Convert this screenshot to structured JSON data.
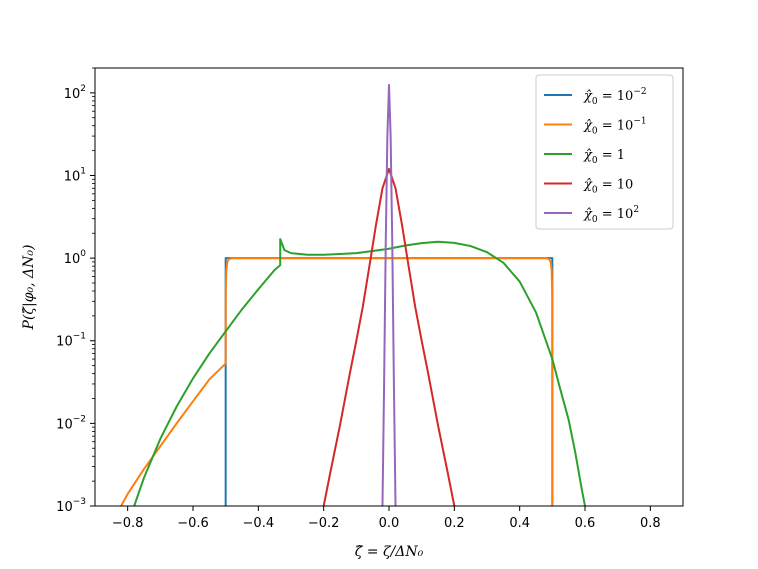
{
  "chart_data": {
    "type": "line",
    "title": "",
    "xlabel": "ζ̂ = ζ/ΔN₀",
    "ylabel": "P(ζ̂|φ₀, ΔN₀)",
    "xlim": [
      -0.9,
      0.9
    ],
    "ylim": [
      0.001,
      200
    ],
    "yscale": "log",
    "grid": false,
    "legend_position": "top-right",
    "xticks": [
      -0.8,
      -0.6,
      -0.4,
      -0.2,
      0.0,
      0.2,
      0.4,
      0.6,
      0.8
    ],
    "xtick_labels": [
      "−0.8",
      "−0.6",
      "−0.4",
      "−0.2",
      "0.0",
      "0.2",
      "0.4",
      "0.6",
      "0.8"
    ],
    "yticks": [
      0.001,
      0.01,
      0.1,
      1,
      10,
      100
    ],
    "ytick_labels": [
      {
        "base": "10",
        "exp": "−3"
      },
      {
        "base": "10",
        "exp": "−2"
      },
      {
        "base": "10",
        "exp": "−1"
      },
      {
        "base": "10",
        "exp": "0"
      },
      {
        "base": "10",
        "exp": "1"
      },
      {
        "base": "10",
        "exp": "2"
      }
    ],
    "series": [
      {
        "name": "χ̂₀ = 10⁻²",
        "legend": {
          "prefix": "χ̂",
          "sub": "0",
          "mid": " = 10",
          "sup": "−2"
        },
        "color": "#1f77b4",
        "x": [
          -0.5,
          -0.5,
          -0.5,
          0.5,
          0.5,
          0.5
        ],
        "y": [
          0.001,
          0.02,
          1.0,
          1.0,
          0.02,
          0.001
        ]
      },
      {
        "name": "χ̂₀ = 10⁻¹",
        "legend": {
          "prefix": "χ̂",
          "sub": "0",
          "mid": " = 10",
          "sup": "−1"
        },
        "color": "#ff7f0e",
        "x": [
          -0.82,
          -0.8,
          -0.75,
          -0.7,
          -0.65,
          -0.6,
          -0.55,
          -0.5,
          -0.5,
          -0.498,
          -0.495,
          -0.49,
          -0.48,
          0.0,
          0.48,
          0.49,
          0.495,
          0.498,
          0.5,
          0.5
        ],
        "y": [
          0.001,
          0.0014,
          0.0028,
          0.0053,
          0.01,
          0.0185,
          0.034,
          0.053,
          0.35,
          0.7,
          0.9,
          0.97,
          1.0,
          1.0,
          1.0,
          0.97,
          0.9,
          0.7,
          0.35,
          0.001
        ]
      },
      {
        "name": "χ̂₀ = 1",
        "legend": {
          "prefix": "χ̂",
          "sub": "0",
          "mid": " = 1",
          "sup": ""
        },
        "color": "#2ca02c",
        "x": [
          -0.78,
          -0.75,
          -0.7,
          -0.65,
          -0.6,
          -0.55,
          -0.5,
          -0.45,
          -0.4,
          -0.35,
          -0.333,
          -0.333,
          -0.32,
          -0.3,
          -0.25,
          -0.2,
          -0.15,
          -0.1,
          -0.05,
          0.0,
          0.05,
          0.1,
          0.15,
          0.2,
          0.25,
          0.3,
          0.35,
          0.4,
          0.45,
          0.5,
          0.52,
          0.55,
          0.57,
          0.59,
          0.6
        ],
        "y": [
          0.001,
          0.0022,
          0.0065,
          0.016,
          0.035,
          0.07,
          0.13,
          0.24,
          0.42,
          0.72,
          0.82,
          1.7,
          1.25,
          1.15,
          1.1,
          1.1,
          1.12,
          1.15,
          1.22,
          1.3,
          1.42,
          1.52,
          1.58,
          1.53,
          1.4,
          1.18,
          0.88,
          0.52,
          0.22,
          0.06,
          0.03,
          0.011,
          0.0045,
          0.0016,
          0.001
        ]
      },
      {
        "name": "χ̂₀ = 10",
        "legend": {
          "prefix": "χ̂",
          "sub": "0",
          "mid": " = 10",
          "sup": ""
        },
        "color": "#d62728",
        "x": [
          -0.2,
          -0.18,
          -0.15,
          -0.12,
          -0.1,
          -0.08,
          -0.06,
          -0.04,
          -0.02,
          0.0,
          0.02,
          0.04,
          0.06,
          0.08,
          0.1,
          0.12,
          0.15,
          0.18,
          0.2
        ],
        "y": [
          0.001,
          0.0025,
          0.0095,
          0.04,
          0.1,
          0.26,
          0.8,
          2.5,
          7.0,
          12.0,
          7.0,
          2.5,
          0.8,
          0.26,
          0.1,
          0.04,
          0.0095,
          0.0025,
          0.001
        ]
      },
      {
        "name": "χ̂₀ = 10²",
        "legend": {
          "prefix": "χ̂",
          "sub": "0",
          "mid": " = 10",
          "sup": "2"
        },
        "color": "#9467bd",
        "x": [
          -0.02,
          -0.015,
          -0.01,
          -0.005,
          0.0,
          0.005,
          0.01,
          0.015,
          0.02
        ],
        "y": [
          0.001,
          0.03,
          1.5,
          30.0,
          125.0,
          30.0,
          1.5,
          0.03,
          0.001
        ]
      }
    ]
  }
}
